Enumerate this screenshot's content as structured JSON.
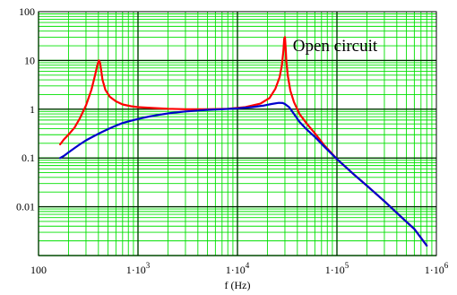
{
  "chart_data": {
    "type": "line",
    "title": "",
    "xlabel": "f (Hz)",
    "ylabel": "",
    "x_scale": "log",
    "y_scale": "log",
    "xlim": [
      100,
      1000000
    ],
    "ylim": [
      0.001,
      100
    ],
    "grid": true,
    "x_ticks": [
      {
        "value": 100,
        "base": "100",
        "exp": ""
      },
      {
        "value": 1000,
        "base": "1·10",
        "exp": "3"
      },
      {
        "value": 10000,
        "base": "1·10",
        "exp": "4"
      },
      {
        "value": 100000,
        "base": "1·10",
        "exp": "5"
      },
      {
        "value": 1000000,
        "base": "1·10",
        "exp": "6"
      }
    ],
    "y_ticks": [
      {
        "value": 100,
        "label": "100"
      },
      {
        "value": 10,
        "label": "10"
      },
      {
        "value": 1,
        "label": "1"
      },
      {
        "value": 0.1,
        "label": "0.1"
      },
      {
        "value": 0.01,
        "label": "0.01"
      }
    ],
    "annotations": [
      {
        "text": "Open circuit",
        "x": 36000,
        "y": 20
      }
    ],
    "series": [
      {
        "color": "#ff0000",
        "x": [
          165,
          180,
          200,
          230,
          260,
          300,
          340,
          370,
          390,
          405,
          415,
          425,
          440,
          470,
          520,
          600,
          700,
          850,
          1000,
          1500,
          2000,
          3000,
          5000,
          8000,
          12000,
          17000,
          21000,
          24000,
          26500,
          28000,
          29000,
          29500,
          30000,
          30500,
          31000,
          32000,
          34000,
          37000,
          42000,
          50000,
          60000,
          75000,
          100000,
          150000,
          200000,
          300000,
          450000,
          600000,
          800000
        ],
        "y": [
          0.19,
          0.24,
          0.3,
          0.42,
          0.65,
          1.2,
          2.5,
          5.0,
          8.0,
          10.0,
          9.0,
          6.5,
          4.0,
          2.5,
          1.8,
          1.45,
          1.25,
          1.15,
          1.1,
          1.05,
          1.02,
          1.0,
          1.0,
          1.02,
          1.1,
          1.3,
          1.7,
          2.6,
          4.5,
          8.0,
          16.0,
          28.0,
          30.0,
          18.0,
          10.0,
          5.0,
          2.4,
          1.4,
          0.8,
          0.5,
          0.32,
          0.18,
          0.095,
          0.045,
          0.027,
          0.013,
          0.006,
          0.0035,
          0.0016
        ]
      },
      {
        "color": "#0000cc",
        "x": [
          165,
          180,
          200,
          230,
          260,
          300,
          360,
          420,
          500,
          600,
          700,
          850,
          1000,
          1300,
          1700,
          2200,
          3000,
          4000,
          5000,
          7000,
          10000,
          14000,
          18000,
          22000,
          26000,
          28500,
          30000,
          33000,
          37000,
          42000,
          50000,
          60000,
          75000,
          100000,
          150000,
          200000,
          300000,
          450000,
          600000,
          800000
        ],
        "y": [
          0.1,
          0.11,
          0.13,
          0.16,
          0.19,
          0.23,
          0.28,
          0.33,
          0.39,
          0.46,
          0.52,
          0.58,
          0.63,
          0.71,
          0.78,
          0.84,
          0.9,
          0.94,
          0.97,
          1.0,
          1.04,
          1.1,
          1.18,
          1.28,
          1.35,
          1.34,
          1.28,
          1.1,
          0.8,
          0.55,
          0.38,
          0.27,
          0.17,
          0.095,
          0.045,
          0.027,
          0.013,
          0.006,
          0.0035,
          0.0016
        ]
      }
    ]
  }
}
